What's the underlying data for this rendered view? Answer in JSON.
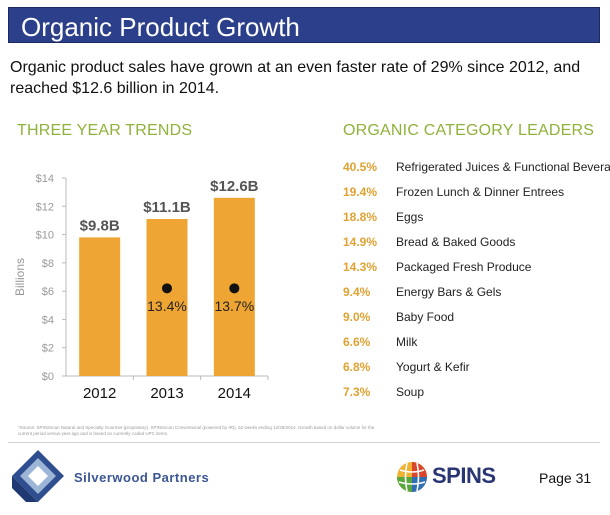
{
  "header": {
    "title": "Organic Product Growth",
    "subtitle": "Organic product sales have grown at an even faster rate of 29% since 2012, and reached $12.6 billion in 2014."
  },
  "trends": {
    "heading": "THREE YEAR TRENDS"
  },
  "leaders": {
    "heading": "ORGANIC CATEGORY LEADERS",
    "items": [
      {
        "pct": "40.5%",
        "name": "Refrigerated Juices & Functional Beverages"
      },
      {
        "pct": "19.4%",
        "name": "Frozen Lunch & Dinner Entrees"
      },
      {
        "pct": "18.8%",
        "name": "Eggs"
      },
      {
        "pct": "14.9%",
        "name": "Bread & Baked Goods"
      },
      {
        "pct": "14.3%",
        "name": "Packaged Fresh Produce"
      },
      {
        "pct": "9.4%",
        "name": "Energy Bars & Gels"
      },
      {
        "pct": "9.0%",
        "name": "Baby Food"
      },
      {
        "pct": "6.6%",
        "name": "Milk"
      },
      {
        "pct": "6.8%",
        "name": "Yogurt & Kefir"
      },
      {
        "pct": "7.3%",
        "name": "Soup"
      }
    ]
  },
  "chart_data": {
    "type": "bar",
    "title": "THREE YEAR TRENDS",
    "categories": [
      "2012",
      "2013",
      "2014"
    ],
    "values": [
      9.8,
      11.1,
      12.6
    ],
    "value_labels": [
      "$9.8B",
      "$11.1B",
      "$12.6B"
    ],
    "growth_labels": [
      "",
      "13.4%",
      "13.7%"
    ],
    "ylabel": "Billions",
    "ylim": [
      0,
      14
    ],
    "yticks": [
      0,
      2,
      4,
      6,
      8,
      10,
      12,
      14
    ],
    "ytick_labels": [
      "$0",
      "$2",
      "$4",
      "$6",
      "$8",
      "$10",
      "$12",
      "$14"
    ],
    "colors": {
      "bar": "#efa534",
      "axis": "#bbbbbb",
      "tick_label": "#999999"
    }
  },
  "footer": {
    "source": "*Source: SPINSscan Natural and Specialty Gourmet (proprietary), SPINSscan Conventional (powered by IRI), 52 weeks ending 12/28/2014. Growth based on dollar volume for the current period versus year ago and is based on currently coded UPC items.",
    "company": "Silverwood Partners",
    "brand": "SPINS",
    "page": "Page 31"
  },
  "theme": {
    "title_bg": "#2b3f8a",
    "accent_green": "#8fb23a",
    "accent_orange": "#e0a233"
  }
}
